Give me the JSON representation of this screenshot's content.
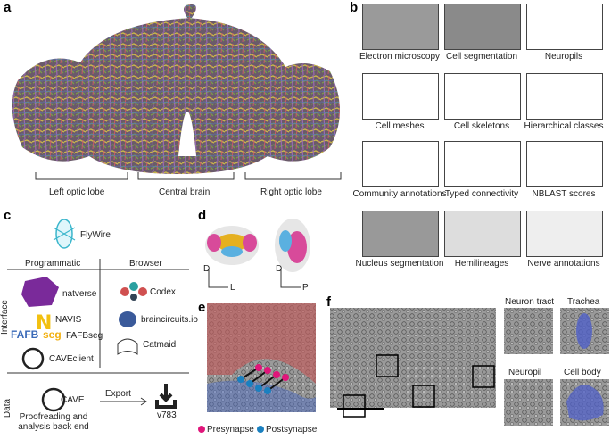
{
  "panel_labels": [
    "a",
    "b",
    "c",
    "d",
    "e",
    "f"
  ],
  "a": {
    "labels": [
      "Left optic lobe",
      "Central brain",
      "Right optic lobe"
    ]
  },
  "b": {
    "tiles": [
      "Electron microscopy",
      "Cell segmentation",
      "Neuropils",
      "Cell meshes",
      "Cell skeletons",
      "Hierarchical classes",
      "Community annotations",
      "Typed connectivity",
      "NBLAST scores",
      "Nucleus segmentation",
      "Hemilineages",
      "Nerve annotations"
    ]
  },
  "c": {
    "app": "FlyWire",
    "interface_label": "Interface",
    "columns": [
      "Programmatic",
      "Browser"
    ],
    "programmatic": [
      "natverse",
      "NAVIS",
      "FAFBseg",
      "CAVEclient"
    ],
    "fafbseg_logo": [
      "FAFB",
      "seg"
    ],
    "browser": [
      "Codex",
      "braincircuits.io",
      "Catmaid"
    ],
    "data_label": "Data",
    "backend": {
      "name": "CAVE",
      "description": "Proofreading and analysis back end"
    },
    "export": {
      "label": "Export",
      "version": "v783"
    }
  },
  "d": {
    "axes": [
      [
        "D",
        "L"
      ],
      [
        "D",
        "P"
      ]
    ]
  },
  "e": {
    "legend": [
      "Presynapse",
      "Postsynapse"
    ]
  },
  "f": {
    "insets": [
      "Neuron tract",
      "Trachea",
      "Neuropil",
      "Cell body"
    ]
  }
}
